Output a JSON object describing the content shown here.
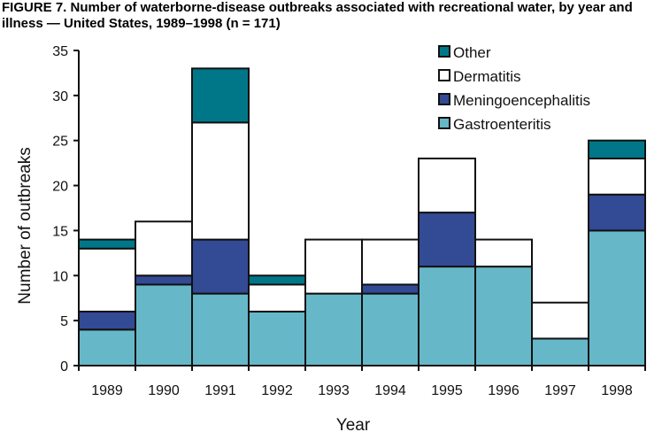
{
  "chart_data": {
    "type": "bar",
    "stacked": true,
    "title": "FIGURE 7.  Number of waterborne-disease outbreaks associated with recreational water, by year and illness — United States, 1989–1998 (n = 171)",
    "xlabel": "Year",
    "ylabel": "Number of outbreaks",
    "ylim": [
      0,
      35
    ],
    "yticks": [
      0,
      5,
      10,
      15,
      20,
      25,
      30,
      35
    ],
    "grid": false,
    "legend_position": "top-right",
    "categories": [
      "1989",
      "1990",
      "1991",
      "1992",
      "1993",
      "1994",
      "1995",
      "1996",
      "1997",
      "1998"
    ],
    "series": [
      {
        "name": "Gastroenteritis",
        "color": "#66b8c8",
        "values": [
          4,
          9,
          8,
          6,
          8,
          8,
          11,
          11,
          3,
          15
        ]
      },
      {
        "name": "Meningoencephalitis",
        "color": "#334a94",
        "values": [
          2,
          1,
          6,
          0,
          0,
          1,
          6,
          0,
          0,
          4
        ]
      },
      {
        "name": "Dermatitis",
        "color": "#ffffff",
        "values": [
          7,
          6,
          13,
          3,
          6,
          5,
          6,
          3,
          4,
          4
        ]
      },
      {
        "name": "Other",
        "color": "#007788",
        "values": [
          1,
          0,
          6,
          1,
          0,
          0,
          0,
          0,
          0,
          2
        ]
      }
    ]
  }
}
